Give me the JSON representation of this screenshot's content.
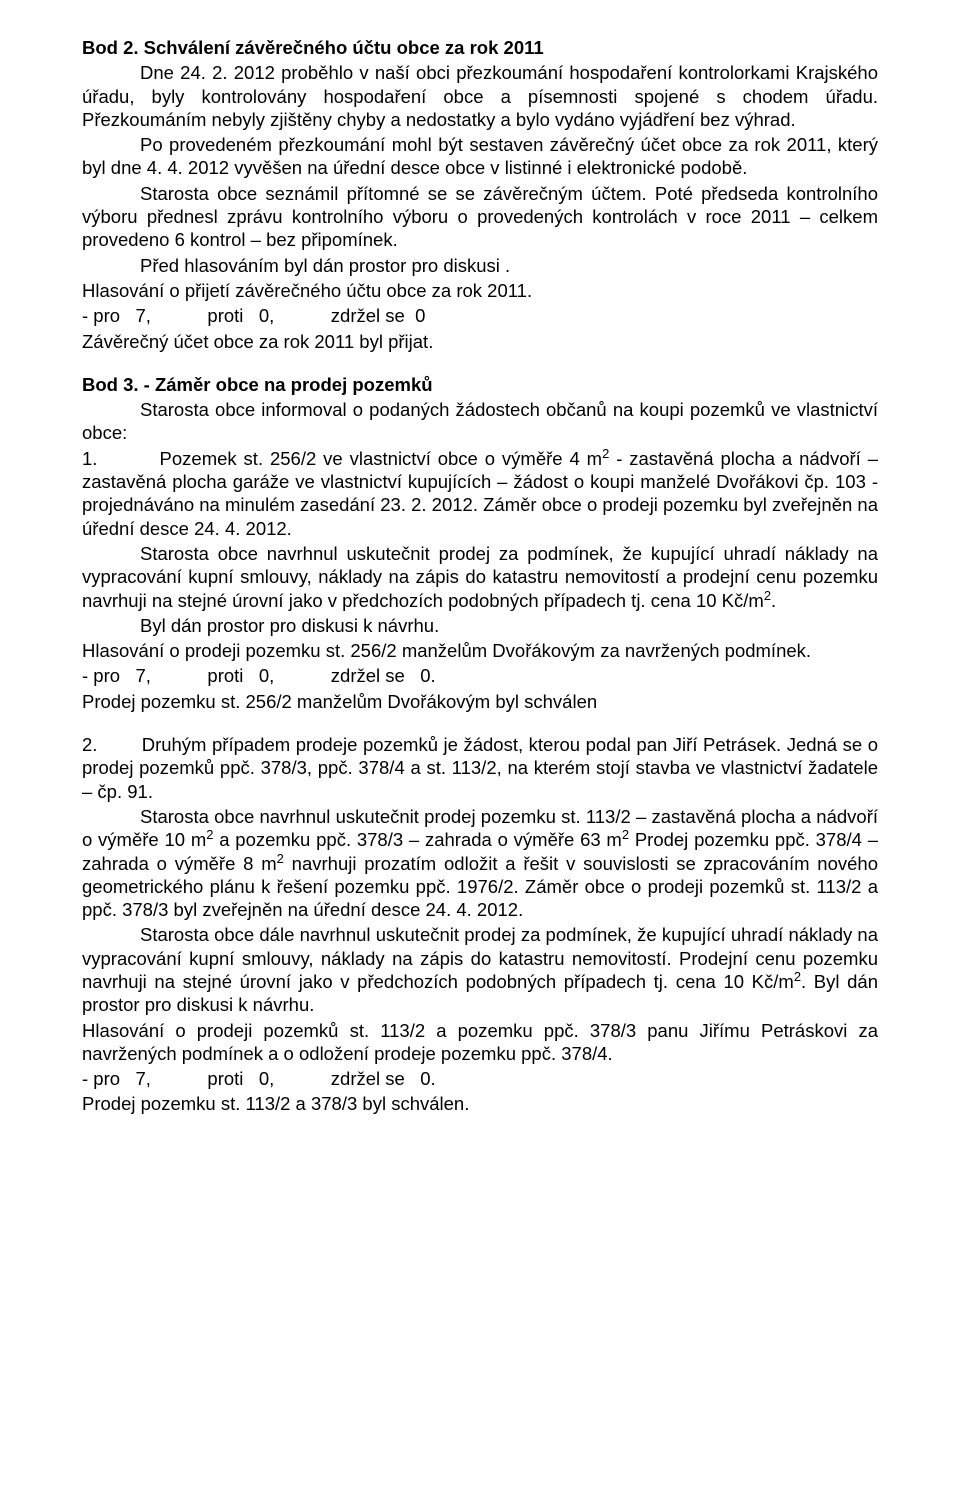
{
  "doc": {
    "bod2": {
      "heading": "Bod 2. Schválení závěrečného účtu obce za rok 2011",
      "p1": "Dne 24. 2. 2012 proběhlo v naší obci přezkoumání hospodaření kontrolorkami Krajského úřadu, byly kontrolovány hospodaření obce a písemnosti spojené s chodem úřadu. Přezkoumáním nebyly zjištěny chyby a nedostatky a bylo vydáno vyjádření bez výhrad.",
      "p2": "Po provedeném přezkoumání mohl být sestaven závěrečný účet obce za rok 2011, který byl dne 4. 4. 2012 vyvěšen na úřední desce obce v listinné i elektronické podobě.",
      "p3": "Starosta obce seznámil přítomné se se závěrečným účtem. Poté předseda kontrolního výboru přednesl zprávu kontrolního výboru o provedených kontrolách v roce 2011 – celkem provedeno 6 kontrol – bez připomínek.",
      "p4": "Před hlasováním byl dán prostor pro diskusi .",
      "hlas": "Hlasování o přijetí závěrečného účtu obce za rok 2011.",
      "vote": "- pro   7,           proti   0,           zdržel se  0",
      "result": "Závěrečný účet obce za rok 2011 byl přijat."
    },
    "bod3": {
      "heading": "Bod 3. - Záměr obce na prodej pozemků",
      "intro": "Starosta obce informoval o podaných žádostech občanů na koupi pozemků ve vlastnictví obce:",
      "p1a_pre": "1.         Pozemek st. 256/2 ve vlastnictví obce o výměře 4 m",
      "p1a_post": " - zastavěná plocha a nádvoří – zastavěná plocha garáže ve vlastnictví kupujících – žádost o koupi manželé Dvořákovi čp. 103 - projednáváno na minulém zasedání 23. 2. 2012. Záměr obce o prodeji pozemku byl zveřejněn na úřední desce 24. 4. 2012.",
      "p1b_pre": "Starosta obce navrhnul uskutečnit prodej za podmínek, že kupující uhradí náklady na vypracování kupní smlouvy, náklady na zápis do katastru nemovitostí a prodejní cenu pozemku navrhuji na stejné úrovní jako v předchozích podobných případech tj. cena 10 Kč/m",
      "p1b_post": ".",
      "p1c": "Byl dán prostor pro diskusi k návrhu.",
      "p1d": "Hlasování o prodeji pozemku st. 256/2 manželům Dvořákovým za navržených podmínek.",
      "p1vote": "- pro   7,           proti   0,           zdržel se   0.",
      "p1res": "Prodej pozemku st. 256/2 manželům Dvořákovým byl schválen",
      "p2a": "2.        Druhým případem prodeje pozemků je žádost, kterou podal pan Jiří Petrásek. Jedná se o prodej pozemků ppč. 378/3, ppč. 378/4 a st. 113/2, na kterém stojí stavba ve vlastnictví žadatele – čp. 91.",
      "p2b_1": "Starosta obce navrhnul uskutečnit prodej pozemku st. 113/2 – zastavěná plocha a nádvoří o výměře 10 m",
      "p2b_2": " a pozemku ppč. 378/3 – zahrada o výměře 63 m",
      "p2b_3": " Prodej pozemku ppč. 378/4 – zahrada o výměře 8 m",
      "p2b_4": " navrhuji prozatím odložit a řešit v souvislosti se zpracováním nového geometrického plánu k řešení pozemku ppč. 1976/2. Záměr obce o prodeji pozemků st. 113/2 a ppč. 378/3 byl zveřejněn na úřední desce 24. 4. 2012.",
      "p2c_pre": "Starosta obce dále navrhnul uskutečnit prodej za podmínek, že kupující uhradí náklady na vypracování kupní smlouvy, náklady na zápis do katastru nemovitostí. Prodejní cenu pozemku navrhuji na stejné úrovní jako v předchozích podobných případech tj. cena 10 Kč/m",
      "p2c_post": ". Byl dán prostor pro diskusi k návrhu.",
      "p2d": "Hlasování o prodeji pozemků st. 113/2 a pozemku ppč. 378/3 panu Jiřímu Petráskovi za navržených podmínek a o odložení prodeje pozemku ppč. 378/4.",
      "p2vote": "- pro   7,           proti   0,           zdržel se   0.",
      "p2res": "Prodej pozemku st. 113/2 a 378/3 byl schválen."
    },
    "sup2": "2"
  }
}
